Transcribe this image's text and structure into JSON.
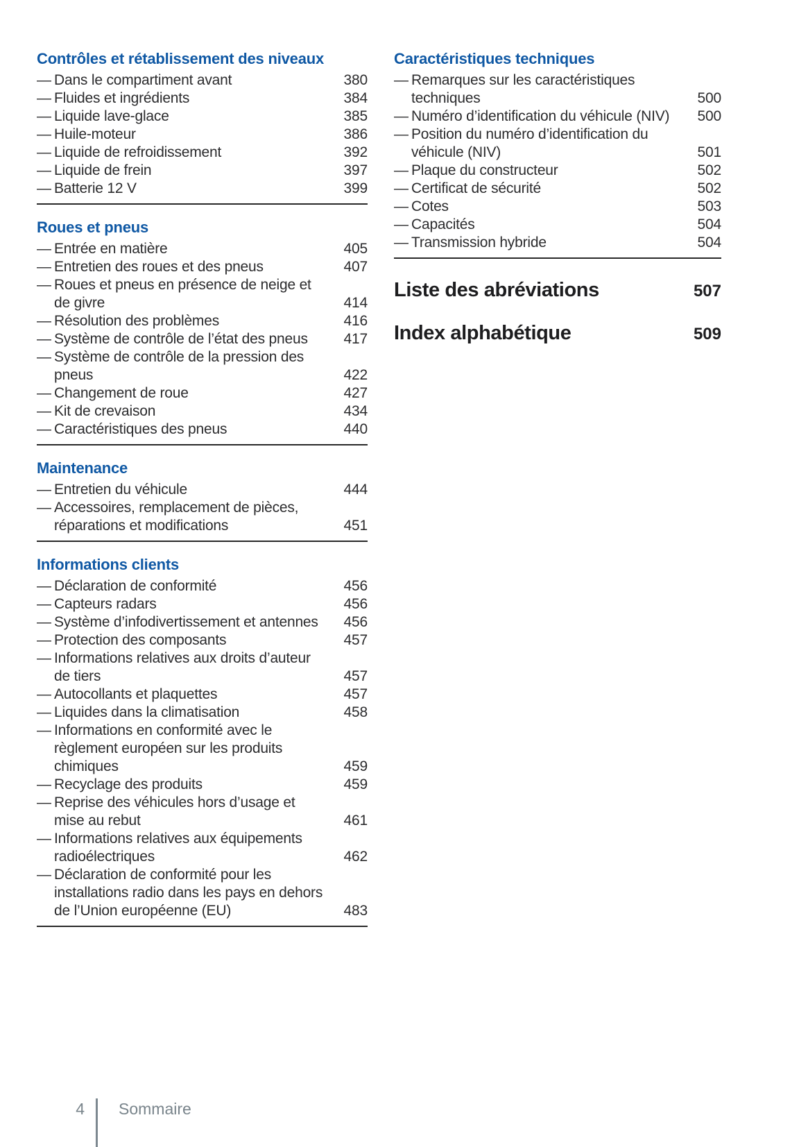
{
  "ui": {
    "dash": "—"
  },
  "colors": {
    "accent_blue": "#0f58a4",
    "text": "#2b2b2d",
    "rule": "#282828",
    "footer_gray": "#79848b"
  },
  "left_column": {
    "sections": [
      {
        "title": "Contrôles et rétablissement des niveaux",
        "items": [
          {
            "label": "Dans le compartiment avant",
            "page": "380"
          },
          {
            "label": "Fluides et ingrédients",
            "page": "384"
          },
          {
            "label": "Liquide lave-glace",
            "page": "385"
          },
          {
            "label": "Huile-moteur",
            "page": "386"
          },
          {
            "label": "Liquide de refroidissement",
            "page": "392"
          },
          {
            "label": "Liquide de frein",
            "page": "397"
          },
          {
            "label": "Batterie 12 V",
            "page": "399"
          }
        ]
      },
      {
        "title": "Roues et pneus",
        "items": [
          {
            "label": "Entrée en matière",
            "page": "405"
          },
          {
            "label": "Entretien des roues et des pneus",
            "page": "407"
          },
          {
            "label": "Roues et pneus en présence de neige et de givre",
            "page": "414"
          },
          {
            "label": "Résolution des problèmes",
            "page": "416"
          },
          {
            "label": "Système de contrôle de l’état des pneus",
            "page": "417"
          },
          {
            "label": "Système de contrôle de la pression des pneus",
            "page": "422"
          },
          {
            "label": "Changement de roue",
            "page": "427"
          },
          {
            "label": "Kit de crevaison",
            "page": "434"
          },
          {
            "label": "Caractéristiques des pneus",
            "page": "440"
          }
        ]
      },
      {
        "title": "Maintenance",
        "items": [
          {
            "label": "Entretien du véhicule",
            "page": "444"
          },
          {
            "label": "Accessoires, remplacement de pièces, réparations et modifications",
            "page": "451"
          }
        ]
      },
      {
        "title": "Informations clients",
        "items": [
          {
            "label": "Déclaration de conformité",
            "page": "456"
          },
          {
            "label": "Capteurs radars",
            "page": "456"
          },
          {
            "label": "Système d’infodivertissement et antennes",
            "page": "456"
          },
          {
            "label": "Protection des composants",
            "page": "457"
          },
          {
            "label": "Informations relatives aux droits d’auteur de tiers",
            "page": "457"
          },
          {
            "label": "Autocollants et plaquettes",
            "page": "457"
          },
          {
            "label": "Liquides dans la climatisation",
            "page": "458"
          },
          {
            "label": "Informations en conformité avec le règlement européen sur les produits chimiques",
            "page": "459"
          },
          {
            "label": "Recyclage des produits",
            "page": "459"
          },
          {
            "label": "Reprise des véhicules hors d’usage et mise au rebut",
            "page": "461"
          },
          {
            "label": "Informations relatives aux équipements radioélectriques",
            "page": "462"
          },
          {
            "label": "Déclaration de conformité pour les installations radio dans les pays en dehors de l’Union européenne (EU)",
            "page": "483"
          }
        ]
      }
    ]
  },
  "right_column": {
    "sections": [
      {
        "title": "Caractéristiques techniques",
        "items": [
          {
            "label": "Remarques sur les caractéristiques techniques",
            "page": "500"
          },
          {
            "label": "Numéro d’identification du véhicule (NIV)",
            "page": "500"
          },
          {
            "label": "Position du numéro d’identification du véhicule (NIV)",
            "page": "501"
          },
          {
            "label": "Plaque du constructeur",
            "page": "502"
          },
          {
            "label": "Certificat de sécurité",
            "page": "502"
          },
          {
            "label": "Cotes",
            "page": "503"
          },
          {
            "label": "Capacités",
            "page": "504"
          },
          {
            "label": "Transmission hybride",
            "page": "504"
          }
        ]
      }
    ],
    "entries": [
      {
        "label": "Liste des abréviations",
        "page": "507"
      },
      {
        "label": "Index alphabétique",
        "page": "509"
      }
    ]
  },
  "footer": {
    "page_number": "4",
    "label": "Sommaire"
  }
}
